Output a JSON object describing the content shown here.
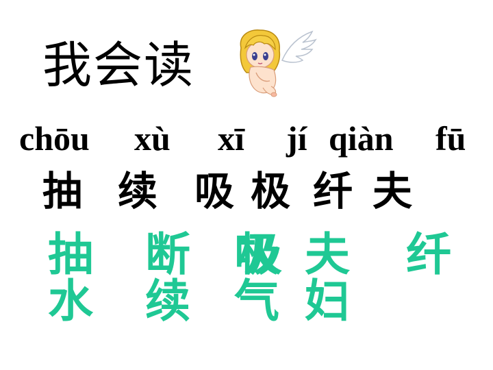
{
  "title": "我会读",
  "illustration": {
    "icon": "angel-cherub-icon"
  },
  "pinyin": [
    {
      "text": "chōu"
    },
    {
      "text": "xù"
    },
    {
      "text": "xī"
    },
    {
      "text": "jí"
    },
    {
      "text": "qiàn"
    },
    {
      "text": "fū"
    }
  ],
  "characters": [
    {
      "text": "抽"
    },
    {
      "text": "续"
    },
    {
      "text": "吸"
    },
    {
      "text": "极"
    },
    {
      "text": "纤"
    },
    {
      "text": "夫"
    }
  ],
  "vocabulary": {
    "color": "#1fc894",
    "words": [
      {
        "text": "抽水"
      },
      {
        "text": "断续"
      },
      {
        "text": "吸气"
      },
      {
        "text": "极"
      },
      {
        "text": "夫妇"
      },
      {
        "text": "纤"
      }
    ]
  }
}
